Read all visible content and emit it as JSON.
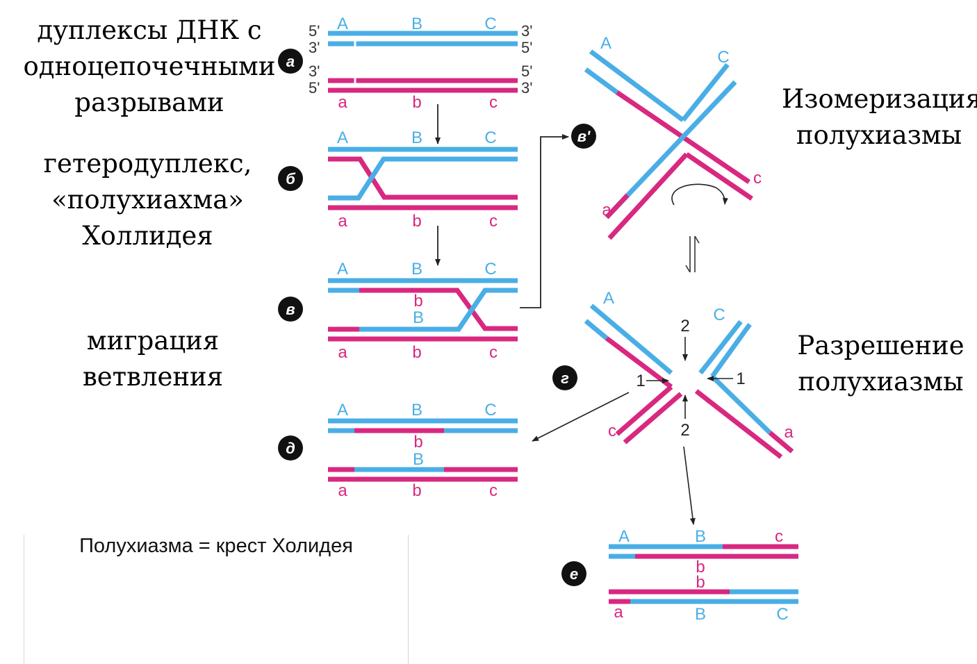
{
  "captions": {
    "duplexes": [
      "дуплексы ДНК с",
      "одноцепочечными",
      "разрывами"
    ],
    "heteroduplex": [
      "гетеродуплекс,",
      "«полухиахма»",
      "Холлидея"
    ],
    "migration": "миграция ветвления",
    "isomerization": [
      "Изомеризация",
      "полухиазмы"
    ],
    "resolution": [
      "Разрешение",
      "полухиазмы"
    ]
  },
  "note": "Полухиазма = крест Холидея",
  "step_labels": {
    "a": "а",
    "b": "б",
    "v": "в",
    "v_prime": "в'",
    "g": "г",
    "d": "д",
    "e": "е"
  },
  "strand_ends": {
    "five": "5'",
    "three": "3'"
  },
  "alleles": {
    "A": "A",
    "B": "B",
    "C": "C",
    "a": "a",
    "b": "b",
    "c": "c"
  },
  "cut_numbers": {
    "one": "1",
    "two": "2"
  },
  "colors": {
    "blue_strand": "#4aaee6",
    "magenta_strand": "#d8287f",
    "text": "#000000",
    "arrow": "#222222"
  }
}
